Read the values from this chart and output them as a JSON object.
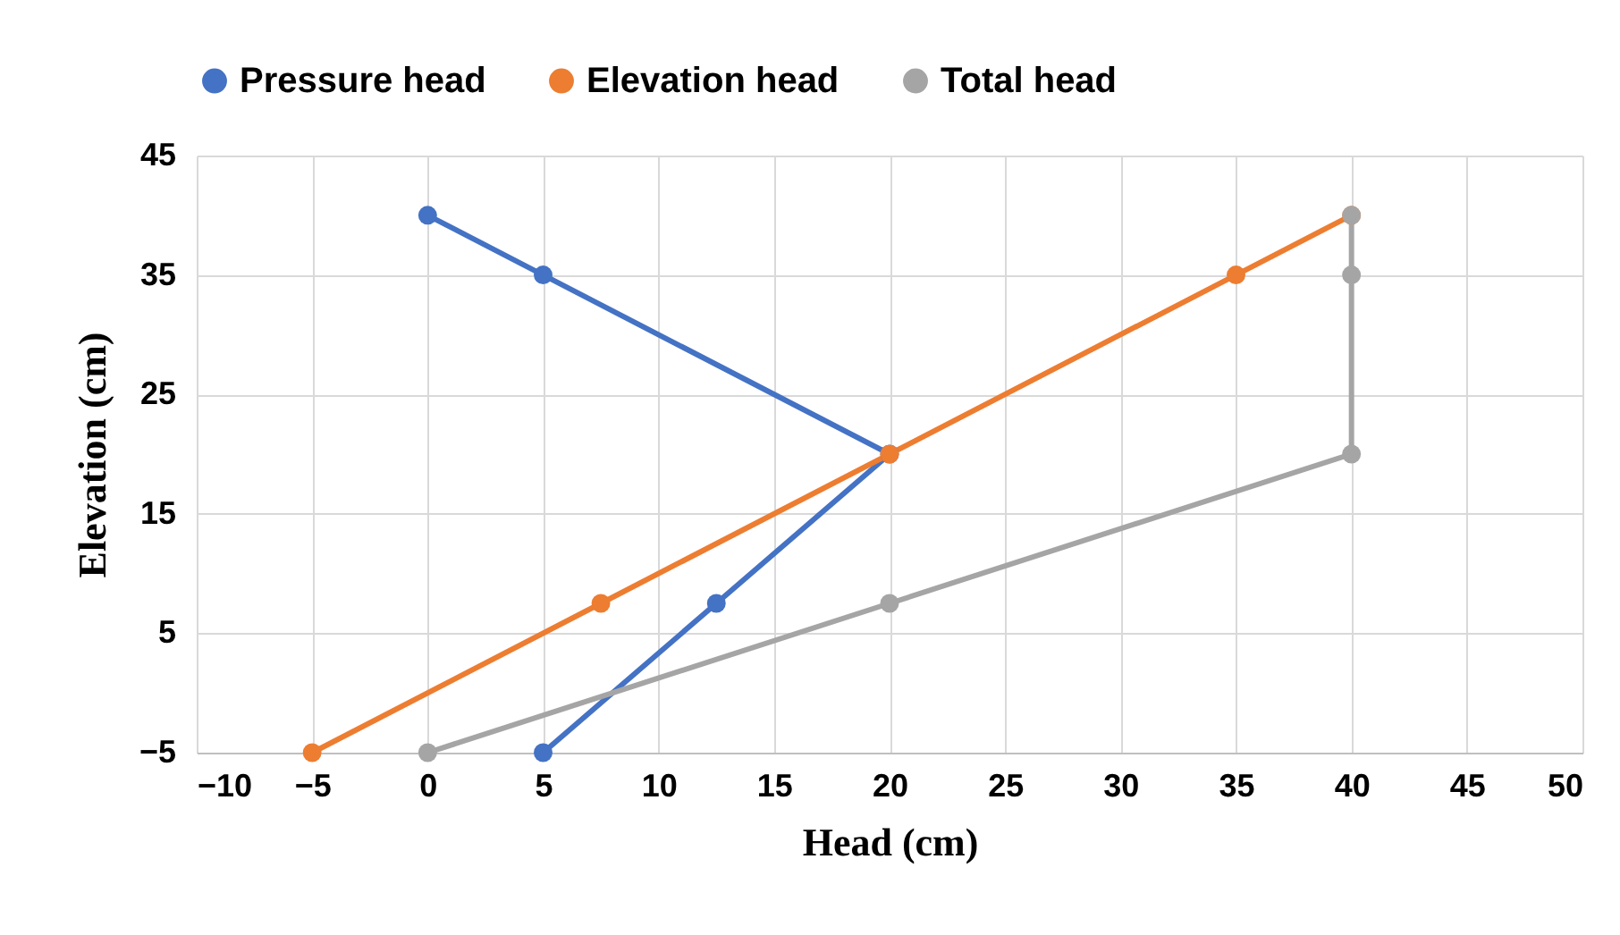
{
  "chart_data": {
    "type": "line",
    "xlabel": "Head (cm)",
    "ylabel": "Elevation (cm)",
    "series": [
      {
        "name": "Pressure head",
        "color": "#4472c4",
        "x": [
          0,
          5,
          20,
          12.5,
          5
        ],
        "values": [
          40,
          35,
          20,
          7.5,
          -5
        ]
      },
      {
        "name": "Elevation head",
        "color": "#ed7d31",
        "x": [
          -5,
          7.5,
          20,
          35,
          40
        ],
        "values": [
          -5,
          7.5,
          20,
          35,
          40
        ]
      },
      {
        "name": "Total head",
        "color": "#a5a5a5",
        "x": [
          0,
          20,
          40,
          40,
          40
        ],
        "values": [
          -5,
          7.5,
          20,
          35,
          40
        ]
      }
    ],
    "xlim": [
      -10,
      50
    ],
    "xticks": [
      -10,
      -5,
      0,
      5,
      10,
      15,
      20,
      25,
      30,
      35,
      40,
      45,
      50
    ],
    "ylim": [
      -5,
      45
    ],
    "yticks": [
      -5,
      5,
      15,
      25,
      35,
      45
    ],
    "grid": true,
    "legend": "top",
    "marker": "circle",
    "line_style": "solid"
  }
}
